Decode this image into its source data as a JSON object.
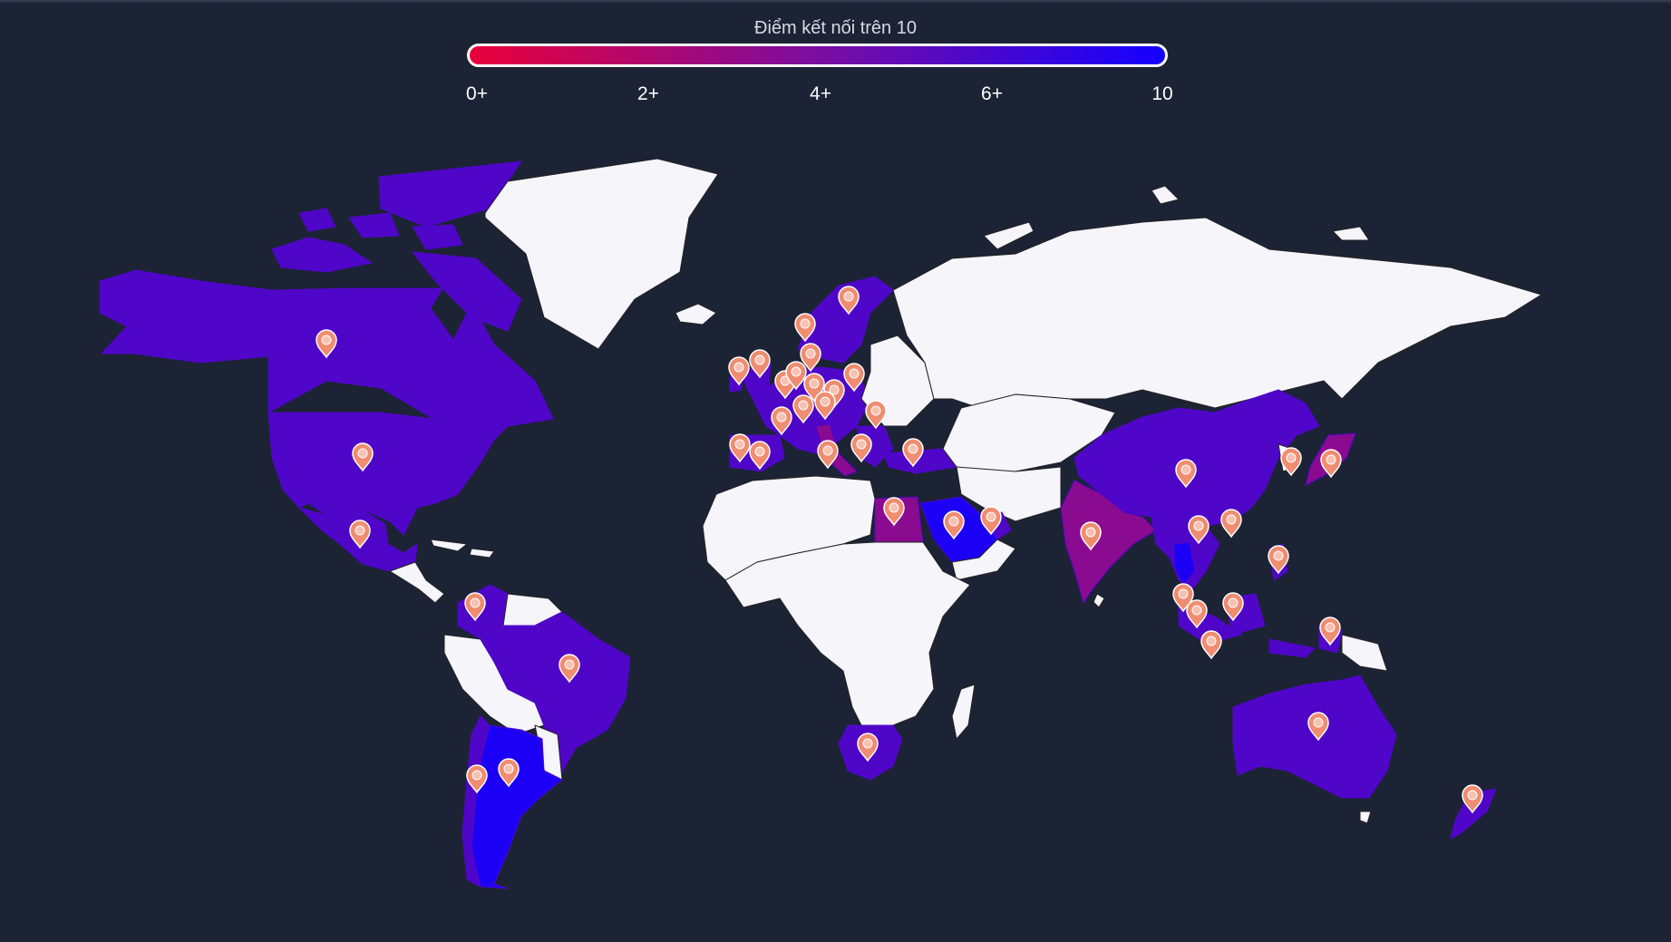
{
  "legend": {
    "title": "Điểm kết nối trên 10",
    "ticks": [
      "0+",
      "2+",
      "4+",
      "6+",
      "10"
    ],
    "gradient_start": "#e8003a",
    "gradient_mid": "#7b0ea0",
    "gradient_end": "#1400ff"
  },
  "colors": {
    "background": "#1c2334",
    "land_no_data": "#f5f5fa",
    "score_mid": "#4f06c8",
    "score_low": "#8a0a90",
    "score_high": "#1c00f5",
    "marker": "#f08c70",
    "border": "#222222"
  },
  "regions": [
    {
      "name": "Canada",
      "score_band": "mid"
    },
    {
      "name": "United States",
      "score_band": "mid"
    },
    {
      "name": "Mexico",
      "score_band": "mid"
    },
    {
      "name": "Greenland",
      "score_band": "none"
    },
    {
      "name": "Colombia",
      "score_band": "mid"
    },
    {
      "name": "Brazil",
      "score_band": "mid"
    },
    {
      "name": "Argentina",
      "score_band": "high"
    },
    {
      "name": "Chile",
      "score_band": "mid"
    },
    {
      "name": "Europe",
      "score_band": "mid"
    },
    {
      "name": "Egypt",
      "score_band": "low"
    },
    {
      "name": "Saudi Arabia",
      "score_band": "high"
    },
    {
      "name": "India",
      "score_band": "low"
    },
    {
      "name": "China",
      "score_band": "mid"
    },
    {
      "name": "Japan",
      "score_band": "low"
    },
    {
      "name": "Southeast Asia",
      "score_band": "mid"
    },
    {
      "name": "Australia",
      "score_band": "mid"
    },
    {
      "name": "New Zealand",
      "score_band": "mid"
    },
    {
      "name": "South Africa",
      "score_band": "mid"
    },
    {
      "name": "Russia",
      "score_band": "none"
    },
    {
      "name": "Africa",
      "score_band": "none"
    }
  ],
  "marker_count": 48,
  "marker_icon": "map-pin-icon"
}
